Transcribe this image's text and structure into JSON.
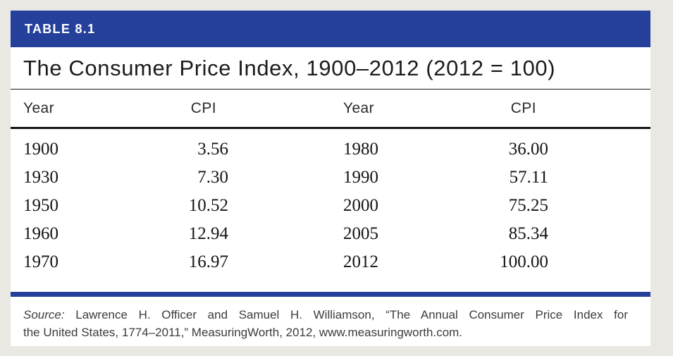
{
  "table": {
    "label": "TABLE 8.1",
    "title": "The Consumer Price Index, 1900–2012 (2012 = 100)",
    "columns": [
      "Year",
      "CPI",
      "Year",
      "CPI"
    ],
    "rows": [
      [
        "1900",
        "3.56",
        "1980",
        "36.00"
      ],
      [
        "1930",
        "7.30",
        "1990",
        "57.11"
      ],
      [
        "1950",
        "10.52",
        "2000",
        "75.25"
      ],
      [
        "1960",
        "12.94",
        "2005",
        "85.34"
      ],
      [
        "1970",
        "16.97",
        "2012",
        "100.00"
      ]
    ]
  },
  "source": {
    "label": "Source:",
    "line1_rest": " Lawrence H. Officer and Samuel H. Williamson, “The Annual Consumer Price Index for",
    "line2": "the United States, 1774–2011,” MeasuringWorth, 2012, www.measuringworth.com."
  },
  "colors": {
    "header_blue": "#24409a",
    "rule_black": "#1a1a1a",
    "background": "#e9e8e3",
    "card": "#ffffff"
  }
}
